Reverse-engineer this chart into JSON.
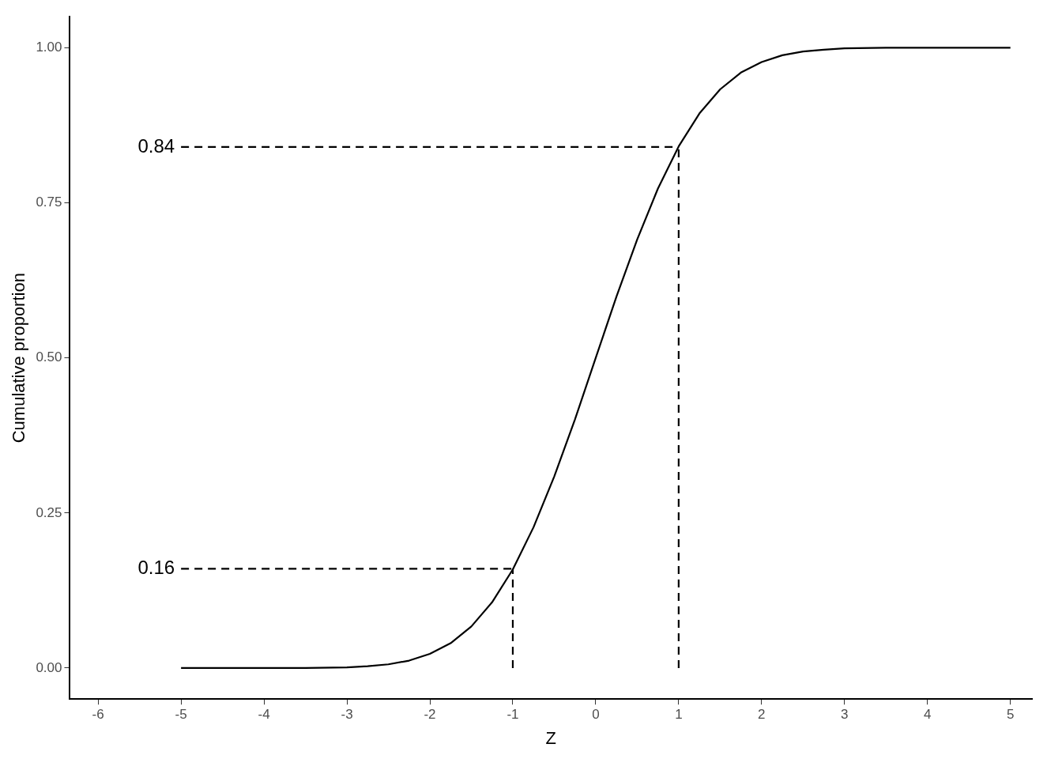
{
  "chart_data": {
    "type": "line",
    "xlabel": "Z",
    "ylabel": "Cumulative proportion",
    "xlim": [
      -6.34,
      5.26
    ],
    "ylim": [
      -0.05,
      1.05
    ],
    "xticks": [
      -6,
      -5,
      -4,
      -3,
      -2,
      -1,
      0,
      1,
      2,
      3,
      4,
      5
    ],
    "yticks": [
      {
        "value": 0,
        "label": "0.00"
      },
      {
        "value": 0.25,
        "label": "0.25"
      },
      {
        "value": 0.5,
        "label": "0.50"
      },
      {
        "value": 0.75,
        "label": "0.75"
      },
      {
        "value": 1,
        "label": "1.00"
      }
    ],
    "grid": false,
    "series": [
      {
        "color": "#000000",
        "line_style": "solid",
        "x": [
          -5,
          -4.5,
          -4,
          -3.5,
          -3,
          -2.75,
          -2.5,
          -2.25,
          -2,
          -1.75,
          -1.5,
          -1.25,
          -1,
          -0.75,
          -0.5,
          -0.25,
          0,
          0.25,
          0.5,
          0.75,
          1,
          1.25,
          1.5,
          1.75,
          2,
          2.25,
          2.5,
          2.75,
          3,
          3.5,
          4,
          4.5,
          5
        ],
        "values": [
          0,
          0,
          0,
          0,
          0.001,
          0.003,
          0.006,
          0.012,
          0.023,
          0.04,
          0.067,
          0.106,
          0.159,
          0.227,
          0.309,
          0.401,
          0.5,
          0.599,
          0.691,
          0.773,
          0.841,
          0.894,
          0.933,
          0.96,
          0.977,
          0.988,
          0.994,
          0.997,
          0.999,
          1,
          1,
          1,
          1
        ]
      },
      {
        "color": "#000000",
        "line_style": "dashed",
        "x": [
          -5,
          1
        ],
        "values": [
          0.84,
          0.84
        ],
        "value_labels": [
          "0.84",
          null
        ]
      },
      {
        "color": "#000000",
        "line_style": "dashed",
        "x": [
          1,
          1
        ],
        "values": [
          0,
          0.84
        ]
      },
      {
        "color": "#000000",
        "line_style": "dashed",
        "x": [
          -5,
          -1
        ],
        "values": [
          0.16,
          0.16
        ],
        "value_labels": [
          "0.16",
          null
        ]
      },
      {
        "color": "#000000",
        "line_style": "dashed",
        "x": [
          -1,
          -1
        ],
        "values": [
          0,
          0.16
        ]
      }
    ]
  }
}
